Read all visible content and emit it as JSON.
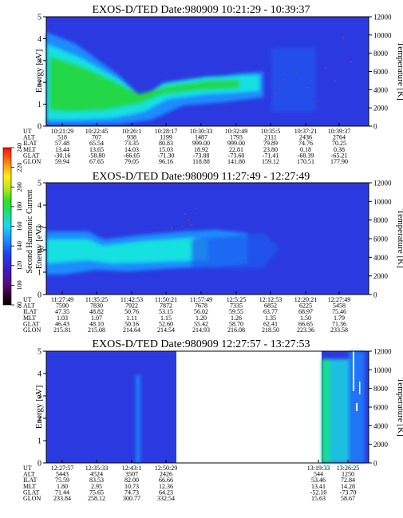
{
  "panels": [
    {
      "title": "EXOS-D/TED   Date:980909  10:21:29 - 10:39:37",
      "energy_ticks": [
        "5",
        "4",
        "3",
        "2",
        "1",
        "0"
      ],
      "temp_ticks": [
        "12000",
        "10000",
        "8000",
        "6000",
        "4000",
        "2000",
        "0"
      ],
      "ylabel": "Energy [eV]",
      "ylabel2": "Temperature [K]",
      "rows": [
        {
          "name": "UT",
          "values": [
            "10:21:29",
            "10:22:45",
            "10:26:1",
            "10:28:17",
            "10:30:33",
            "10:32:49",
            "10:35:5",
            "10:37:21",
            "10:39:37"
          ]
        },
        {
          "name": "ALT",
          "values": [
            "518",
            "707",
            "938",
            "1199",
            "1487",
            "1793",
            "2111",
            "2436",
            "2764"
          ]
        },
        {
          "name": "ILAT",
          "values": [
            "57.48",
            "65.54",
            "73.35",
            "80.83",
            "999.00",
            "999.00",
            "79.89",
            "74.76",
            "70.25"
          ]
        },
        {
          "name": "MLT",
          "values": [
            "13.44",
            "13.65",
            "14.03",
            "15.03",
            "18.92",
            "22.81",
            "23.80",
            "0.18",
            "0.38"
          ]
        },
        {
          "name": "GLAT",
          "values": [
            "-30.16",
            "-58.80",
            "-66.05",
            "-71.30",
            "-73.88",
            "-73.60",
            "-71.41",
            "-68.39",
            "-65.21"
          ]
        },
        {
          "name": "GLON",
          "values": [
            "59.94",
            "67.65",
            "79.05",
            "96.16",
            "118.88",
            "141.80",
            "159.12",
            "170.51",
            "177.90"
          ]
        }
      ]
    },
    {
      "title": "EXOS-D/TED   Date:980909  11:27:49 - 12:27:49",
      "energy_ticks": [
        "5",
        "4",
        "3",
        "2",
        "1",
        "0"
      ],
      "temp_ticks": [
        "12000",
        "10000",
        "8000",
        "6000",
        "4000",
        "2000",
        "0"
      ],
      "ylabel": "Energy [eV]",
      "ylabel2": "Temperature [K]",
      "rows": [
        {
          "name": "UT",
          "values": [
            "11:27:49",
            "11:35:25",
            "11:42:53",
            "11:50:21",
            "11:57:49",
            "12:5:25",
            "12:12:53",
            "12:20:21",
            "12:27:49"
          ]
        },
        {
          "name": "ALT",
          "values": [
            "7590",
            "7830",
            "7922",
            "7872",
            "7678",
            "7335",
            "6852",
            "6225",
            "5458"
          ]
        },
        {
          "name": "ILAT",
          "values": [
            "47.35",
            "48.82",
            "50.76",
            "53.15",
            "56.02",
            "59.55",
            "63.77",
            "68.97",
            "75.46"
          ]
        },
        {
          "name": "MLT",
          "values": [
            "1.03",
            "1.07",
            "1.11",
            "1.15",
            "1.20",
            "1.26",
            "1.35",
            "1.50",
            "1.79"
          ]
        },
        {
          "name": "GLAT",
          "values": [
            "46.43",
            "48.10",
            "50.16",
            "52.60",
            "55.42",
            "58.70",
            "62.41",
            "66.65",
            "71.36"
          ]
        },
        {
          "name": "GLON",
          "values": [
            "215.81",
            "215.08",
            "214.64",
            "214.54",
            "214.93",
            "216.08",
            "218.50",
            "223.36",
            "233.58"
          ]
        }
      ]
    },
    {
      "title": "EXOS-D/TED   Date:980909  12:27:57 - 13:27:53",
      "energy_ticks": [
        "5",
        "4",
        "3",
        "2",
        "1",
        "0"
      ],
      "temp_ticks": [
        "12000",
        "10000",
        "8000",
        "6000",
        "4000",
        "2000",
        "0"
      ],
      "ylabel": "Energy [eV]",
      "ylabel2": "Temperature [K]",
      "rows": [
        {
          "name": "UT",
          "values": [
            "12:27:57",
            "12:35:33",
            "12:43:1",
            "12:50:29",
            "",
            "",
            "",
            "13:19:33",
            "13:26:25"
          ]
        },
        {
          "name": "ALT",
          "values": [
            "5443",
            "4524",
            "3507",
            "2426",
            "",
            "",
            "",
            "544",
            "1250"
          ]
        },
        {
          "name": "ILAT",
          "values": [
            "75.59",
            "83.53",
            "82.00",
            "66.66",
            "",
            "",
            "",
            "53.46",
            "72.84"
          ]
        },
        {
          "name": "MLT",
          "values": [
            "1.80",
            "2.95",
            "10.73",
            "12.36",
            "",
            "",
            "",
            "13.41",
            "14.28"
          ]
        },
        {
          "name": "GLAT",
          "values": [
            "71.44",
            "75.65",
            "74.73",
            "64.23",
            "",
            "",
            "",
            "-52.10",
            "-73.70"
          ]
        },
        {
          "name": "GLON",
          "values": [
            "233.84",
            "258.12",
            "300.77",
            "332.54",
            "",
            "",
            "",
            "15.63",
            "58.67"
          ]
        }
      ]
    }
  ],
  "colorbar": {
    "label": "Second Harmonic Current",
    "ticks": [
      "240",
      "220",
      "200",
      "180",
      "160",
      "140",
      "120",
      "100",
      "80"
    ]
  },
  "chart_data": [
    {
      "type": "heatmap",
      "title": "EXOS-D/TED   Date:980909  10:21:29 - 10:39:37",
      "ylabel": "Energy [eV]",
      "ylim": [
        0,
        5
      ],
      "y2label": "Temperature [K]",
      "y2lim": [
        0,
        12000
      ],
      "x_ticks": [
        "10:21:29",
        "10:22:45",
        "10:26:1",
        "10:28:17",
        "10:30:33",
        "10:32:49",
        "10:35:5",
        "10:37:21",
        "10:39:37"
      ],
      "value_label": "Second Harmonic Current",
      "value_range": [
        80,
        240
      ]
    },
    {
      "type": "heatmap",
      "title": "EXOS-D/TED   Date:980909  11:27:49 - 12:27:49",
      "ylabel": "Energy [eV]",
      "ylim": [
        0,
        5
      ],
      "y2label": "Temperature [K]",
      "y2lim": [
        0,
        12000
      ],
      "x_ticks": [
        "11:27:49",
        "11:35:25",
        "11:42:53",
        "11:50:21",
        "11:57:49",
        "12:5:25",
        "12:12:53",
        "12:20:21",
        "12:27:49"
      ],
      "value_label": "Second Harmonic Current",
      "value_range": [
        80,
        240
      ]
    },
    {
      "type": "heatmap",
      "title": "EXOS-D/TED   Date:980909  12:27:57 - 13:27:53",
      "ylabel": "Energy [eV]",
      "ylim": [
        0,
        5
      ],
      "y2label": "Temperature [K]",
      "y2lim": [
        0,
        12000
      ],
      "x_ticks": [
        "12:27:57",
        "12:35:33",
        "12:43:1",
        "12:50:29",
        "13:19:33",
        "13:26:25"
      ],
      "value_label": "Second Harmonic Current",
      "value_range": [
        80,
        240
      ]
    }
  ],
  "colors": {
    "background_field": "#2b3ae0",
    "band_core": "#22d84a",
    "band_edge": "#16e0e0",
    "band_mid": "#1a8cff",
    "gap_white": "#ffffff"
  }
}
